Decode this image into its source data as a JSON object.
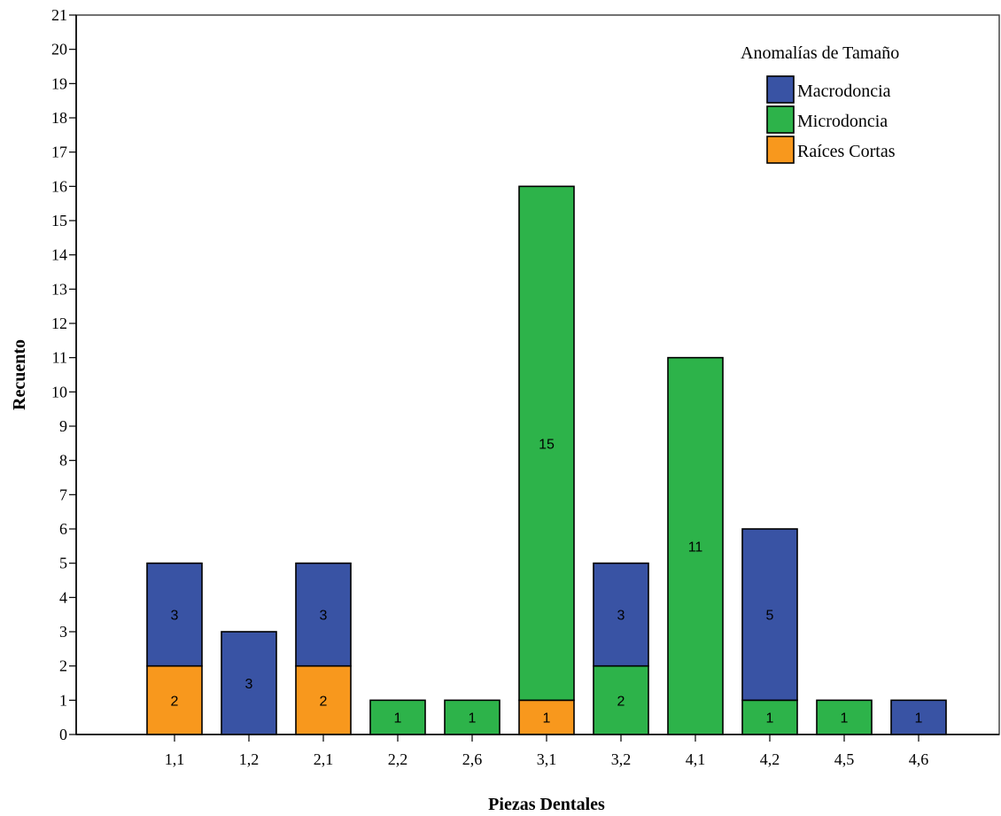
{
  "chart_data": {
    "type": "bar",
    "stacked": true,
    "categories": [
      "1,1",
      "1,2",
      "2,1",
      "2,2",
      "2,6",
      "3,1",
      "3,2",
      "4,1",
      "4,2",
      "4,5",
      "4,6"
    ],
    "xlabel": "Piezas Dentales",
    "ylabel": "Recuento",
    "ylim": [
      0,
      21
    ],
    "yticks": [
      0,
      1,
      2,
      3,
      4,
      5,
      6,
      7,
      8,
      9,
      10,
      11,
      12,
      13,
      14,
      15,
      16,
      17,
      18,
      19,
      20,
      21
    ],
    "grid": false,
    "legend": {
      "title": "Anomalías de Tamaño",
      "placement": "top-right"
    },
    "series": [
      {
        "name": "Raíces Cortas",
        "color": "#f8981d",
        "values": [
          2,
          0,
          2,
          0,
          0,
          1,
          0,
          0,
          0,
          0,
          0
        ]
      },
      {
        "name": "Microdoncia",
        "color": "#2db34a",
        "values": [
          0,
          0,
          0,
          1,
          1,
          15,
          2,
          11,
          1,
          1,
          0
        ]
      },
      {
        "name": "Macrodoncia",
        "color": "#3953a4",
        "values": [
          3,
          3,
          3,
          0,
          0,
          0,
          3,
          0,
          5,
          0,
          1
        ]
      }
    ],
    "legend_order": [
      "Macrodoncia",
      "Microdoncia",
      "Raíces Cortas"
    ]
  }
}
